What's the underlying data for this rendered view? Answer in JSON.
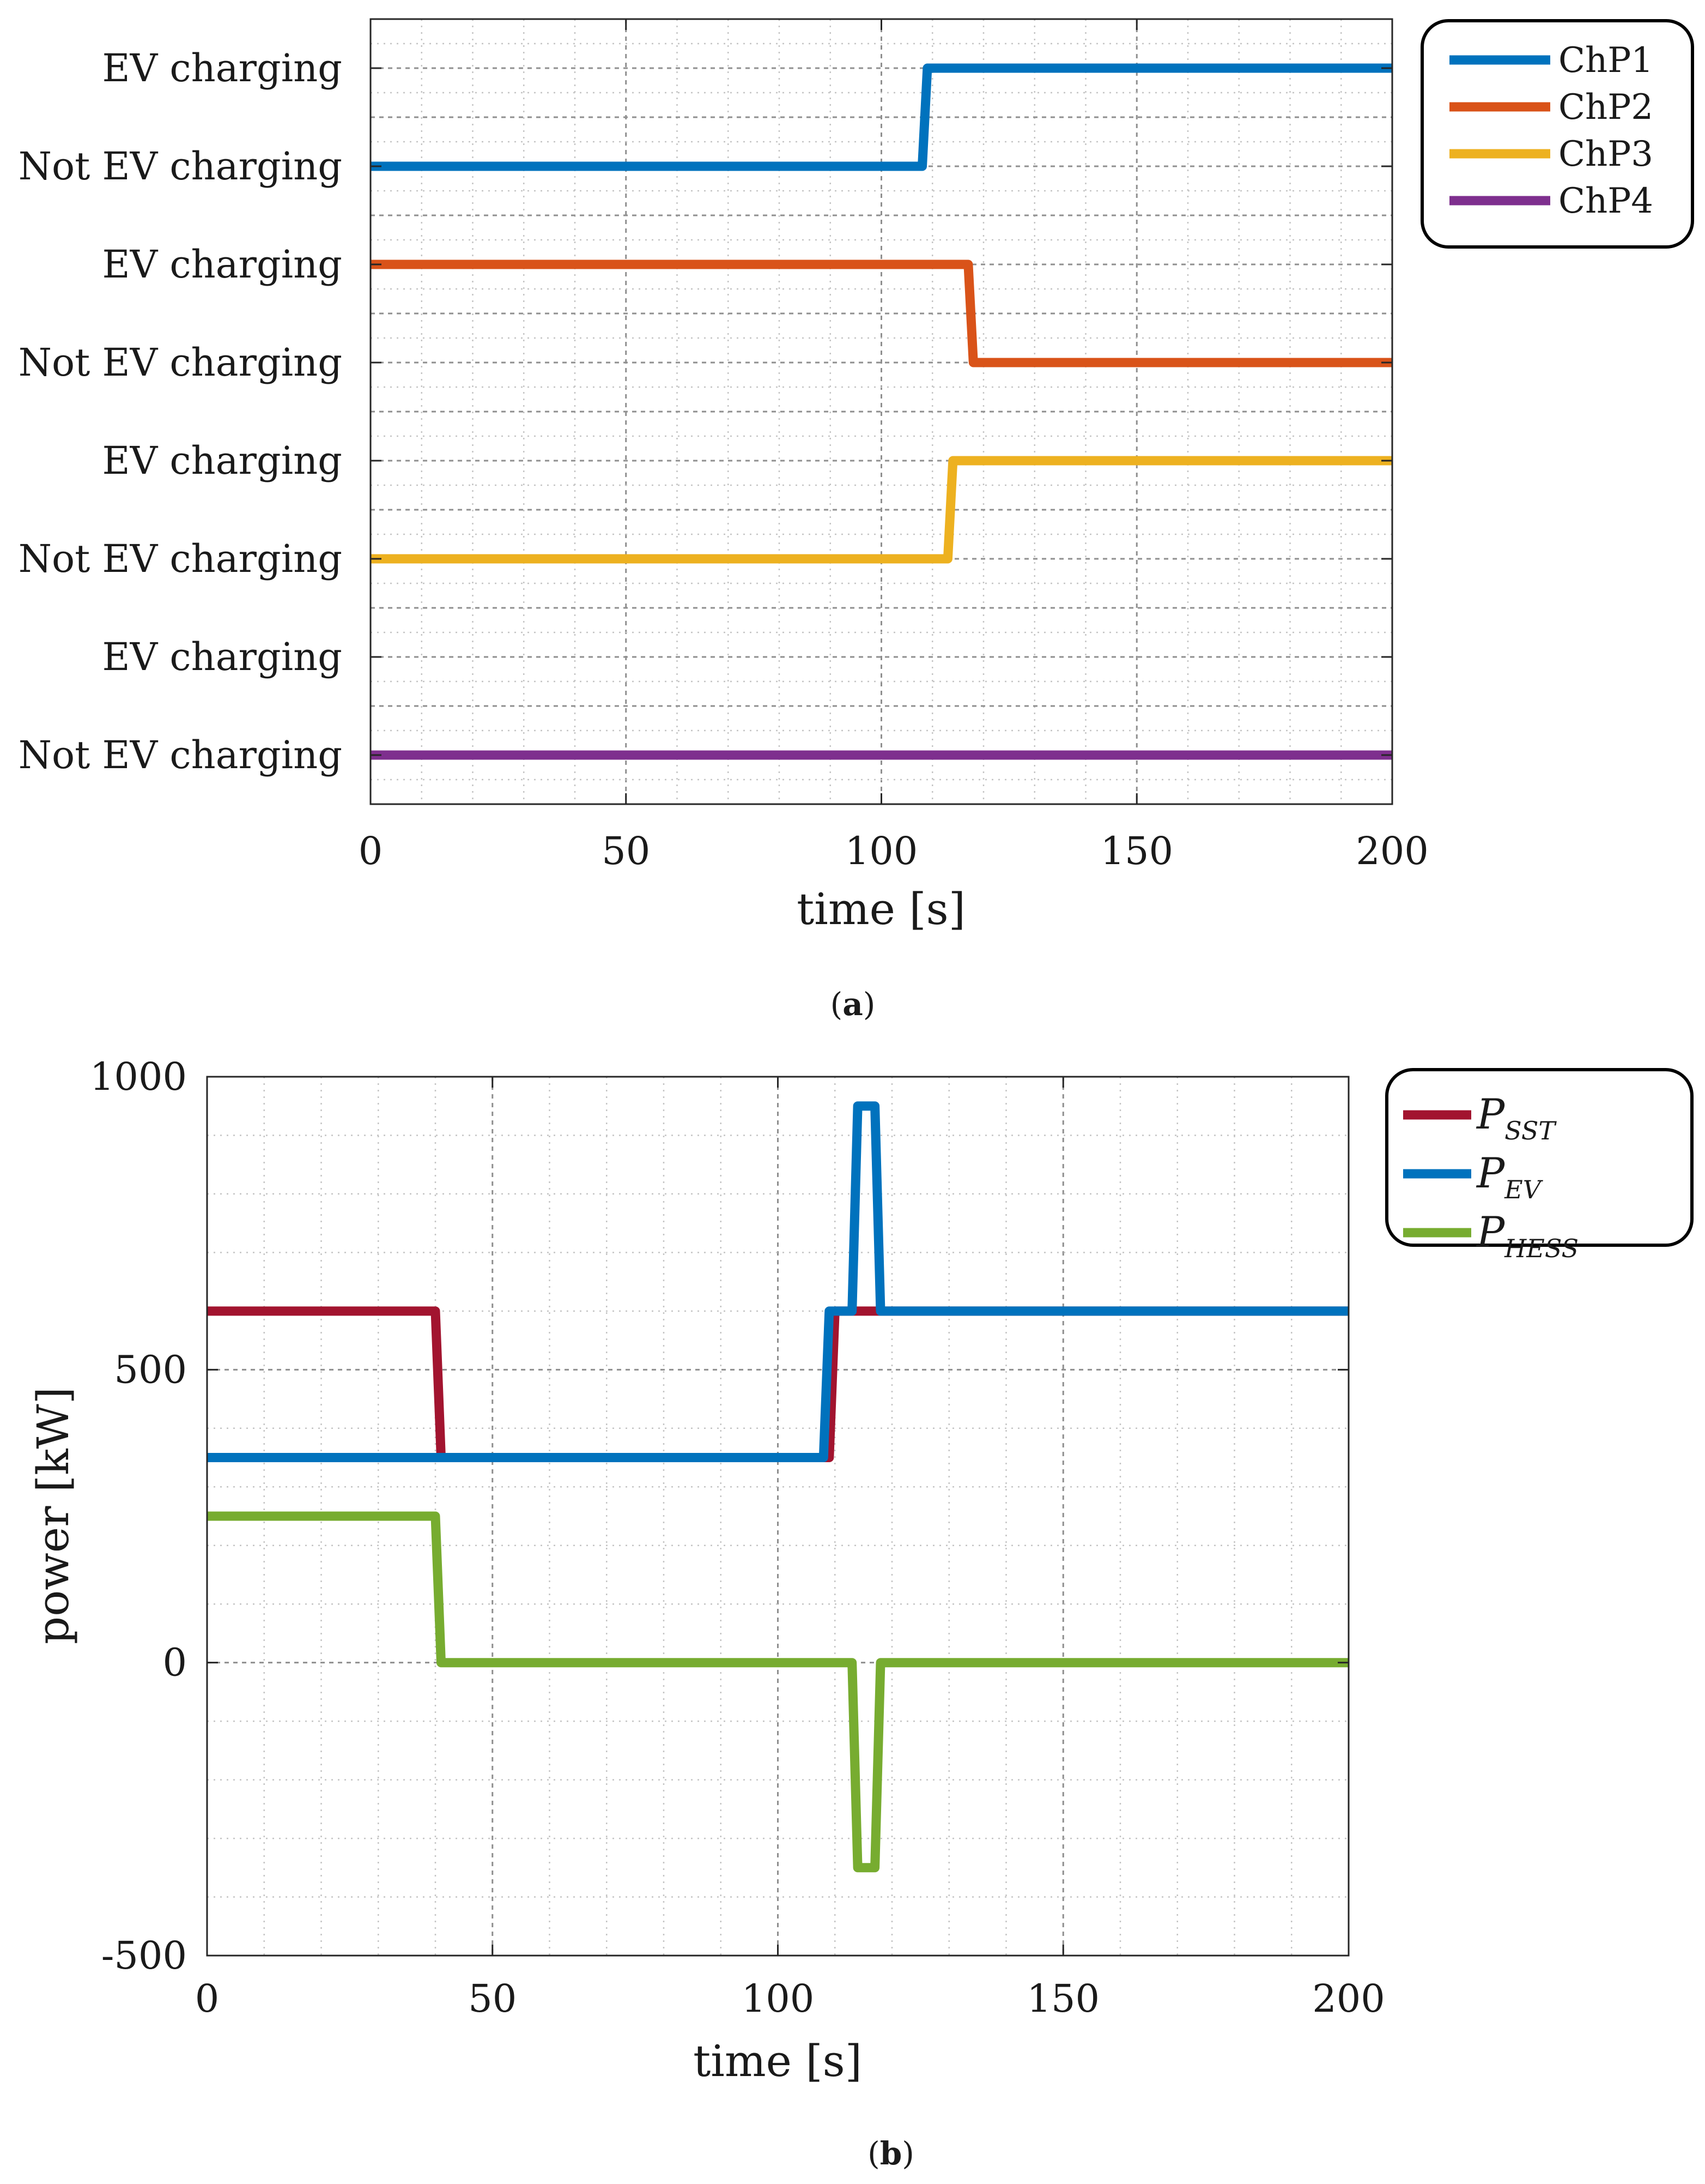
{
  "chart_data": [
    {
      "id": "a",
      "type": "line",
      "caption": {
        "open": "(",
        "letter": "a",
        "close": ")"
      },
      "xlabel": "time [s]",
      "ylabel": "",
      "xlim": [
        0,
        200
      ],
      "ylim": [
        -0.5,
        7.5
      ],
      "grid": true,
      "xticks": [
        0,
        50,
        100,
        150,
        200
      ],
      "yticks": [
        {
          "value": 0,
          "label": "Not EV charging"
        },
        {
          "value": 1,
          "label": "EV charging"
        },
        {
          "value": 2,
          "label": "Not EV charging"
        },
        {
          "value": 3,
          "label": "EV charging"
        },
        {
          "value": 4,
          "label": "Not EV charging"
        },
        {
          "value": 5,
          "label": "EV charging"
        },
        {
          "value": 6,
          "label": "Not EV charging"
        },
        {
          "value": 7,
          "label": "EV charging"
        }
      ],
      "legend_position": "outside-top-right",
      "series": [
        {
          "name": "ChP1",
          "color": "#0072BD",
          "points": [
            [
              0,
              6
            ],
            [
              108,
              6
            ],
            [
              109,
              7
            ],
            [
              200,
              7
            ]
          ]
        },
        {
          "name": "ChP2",
          "color": "#D95319",
          "points": [
            [
              0,
              5
            ],
            [
              117,
              5
            ],
            [
              118,
              4
            ],
            [
              200,
              4
            ]
          ]
        },
        {
          "name": "ChP3",
          "color": "#EDB120",
          "points": [
            [
              0,
              2
            ],
            [
              113,
              2
            ],
            [
              114,
              3
            ],
            [
              200,
              3
            ]
          ]
        },
        {
          "name": "ChP4",
          "color": "#7E2F8E",
          "points": [
            [
              0,
              0
            ],
            [
              200,
              0
            ]
          ]
        }
      ]
    },
    {
      "id": "b",
      "type": "line",
      "caption": {
        "open": "(",
        "letter": "b",
        "close": ")"
      },
      "xlabel": "time [s]",
      "ylabel": "power [kW]",
      "xlim": [
        0,
        200
      ],
      "ylim": [
        -500,
        1000
      ],
      "grid": true,
      "xticks": [
        0,
        50,
        100,
        150,
        200
      ],
      "yticks": [
        {
          "value": -500,
          "label": "-500"
        },
        {
          "value": 0,
          "label": "0"
        },
        {
          "value": 500,
          "label": "500"
        },
        {
          "value": 1000,
          "label": "1000"
        }
      ],
      "legend_position": "outside-top-right",
      "series": [
        {
          "name": "P",
          "sub": "SST",
          "color": "#A2142F",
          "points": [
            [
              0,
              600
            ],
            [
              40,
              600
            ],
            [
              41,
              350
            ],
            [
              109,
              350
            ],
            [
              110,
              600
            ],
            [
              200,
              600
            ]
          ]
        },
        {
          "name": "P",
          "sub": "EV",
          "color": "#0072BD",
          "points": [
            [
              0,
              350
            ],
            [
              108,
              350
            ],
            [
              109,
              600
            ],
            [
              113,
              600
            ],
            [
              114,
              950
            ],
            [
              117,
              950
            ],
            [
              118,
              600
            ],
            [
              200,
              600
            ]
          ]
        },
        {
          "name": "P",
          "sub": "HESS",
          "color": "#77AC30",
          "points": [
            [
              0,
              250
            ],
            [
              40,
              250
            ],
            [
              41,
              0
            ],
            [
              113,
              0
            ],
            [
              114,
              -350
            ],
            [
              117,
              -350
            ],
            [
              118,
              0
            ],
            [
              200,
              0
            ]
          ]
        }
      ]
    }
  ]
}
